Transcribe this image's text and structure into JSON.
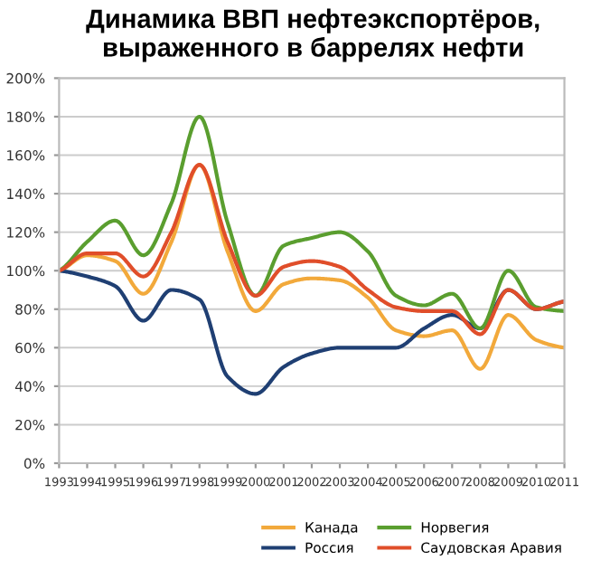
{
  "chart_data": {
    "type": "line",
    "title": "Динамика ВВП нефтеэкспортёров,\nвыраженного в баррелях нефти",
    "x": [
      1993,
      1994,
      1995,
      1996,
      1997,
      1998,
      1999,
      2000,
      2001,
      2002,
      2003,
      2004,
      2005,
      2006,
      2007,
      2008,
      2009,
      2010,
      2011
    ],
    "series": [
      {
        "name": "Канада",
        "color": "#f2a93b",
        "values": [
          100,
          108,
          105,
          88,
          115,
          155,
          110,
          79,
          93,
          96,
          95,
          86,
          69,
          66,
          69,
          49,
          77,
          64,
          60
        ]
      },
      {
        "name": "Россия",
        "color": "#1f3f73",
        "values": [
          100,
          97,
          92,
          74,
          90,
          85,
          45,
          36,
          50,
          57,
          60,
          60,
          60,
          70,
          77,
          70,
          90,
          80,
          84
        ]
      },
      {
        "name": "Норвегия",
        "color": "#5a9e2f",
        "values": [
          100,
          115,
          126,
          108,
          135,
          180,
          125,
          87,
          113,
          117,
          120,
          110,
          87,
          82,
          88,
          70,
          100,
          81,
          79
        ]
      },
      {
        "name": "Саудовская Аравия",
        "color": "#e04e2a",
        "values": [
          100,
          109,
          109,
          97,
          120,
          155,
          115,
          87,
          102,
          105,
          102,
          90,
          81,
          79,
          79,
          67,
          90,
          80,
          84
        ]
      }
    ],
    "xlim": [
      1993,
      2011
    ],
    "xticks": [
      1993,
      1994,
      1995,
      1996,
      1997,
      1998,
      1999,
      2000,
      2001,
      2002,
      2003,
      2004,
      2005,
      2006,
      2007,
      2008,
      2009,
      2010,
      2011
    ],
    "ylim": [
      0,
      200
    ],
    "yticks": [
      {
        "value": 0,
        "label": "0%"
      },
      {
        "value": 20,
        "label": "20%"
      },
      {
        "value": 40,
        "label": "40%"
      },
      {
        "value": 60,
        "label": "60%"
      },
      {
        "value": 80,
        "label": "80%"
      },
      {
        "value": 100,
        "label": "100%"
      },
      {
        "value": 120,
        "label": "120%"
      },
      {
        "value": 140,
        "label": "140%"
      },
      {
        "value": 160,
        "label": "160%"
      },
      {
        "value": 180,
        "label": "180%"
      },
      {
        "value": 200,
        "label": "200%"
      }
    ],
    "grid": "y",
    "legend": "bottom right",
    "marker": "none",
    "line_style": "solid"
  }
}
